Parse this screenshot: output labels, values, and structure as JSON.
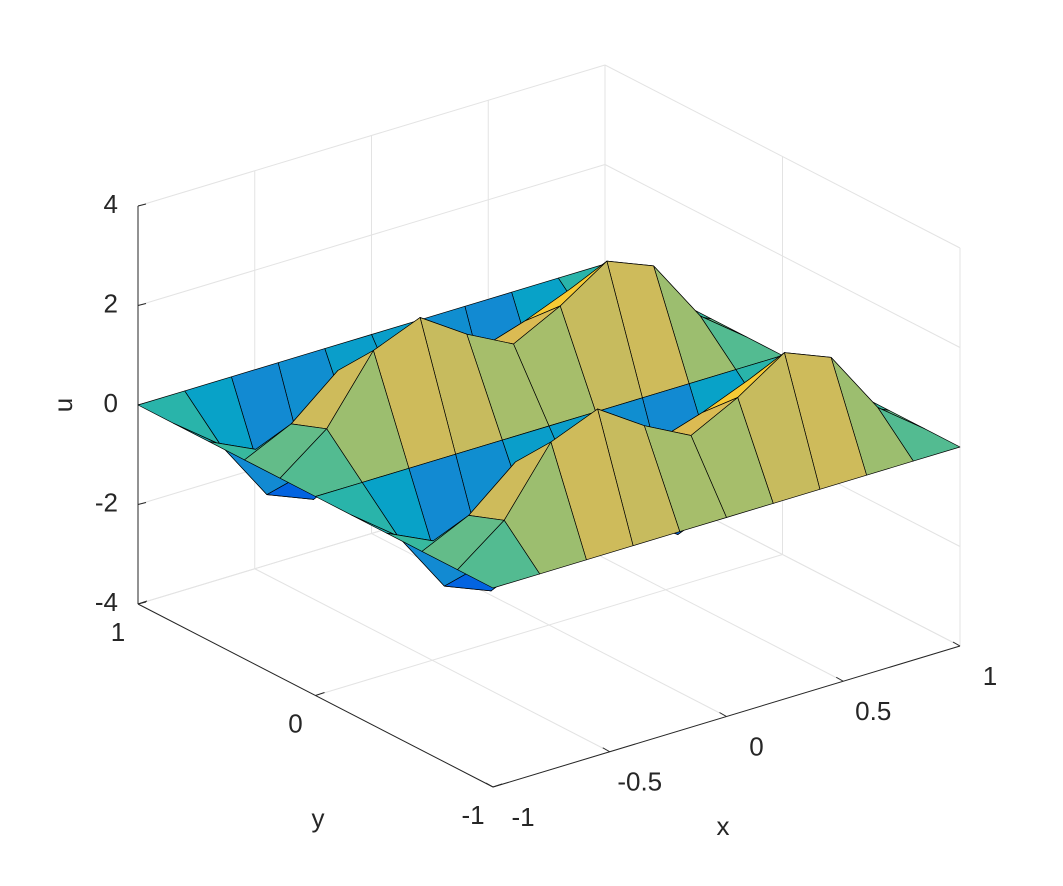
{
  "chart_data": {
    "type": "surface",
    "x": [
      -1,
      -0.8,
      -0.6,
      -0.4,
      -0.2,
      0,
      0.2,
      0.4,
      0.6,
      0.8,
      1
    ],
    "y": [
      -1,
      -0.8,
      -0.6,
      -0.4,
      -0.2,
      0,
      0.2,
      0.4,
      0.6,
      0.8,
      1
    ],
    "z": [
      [
        0,
        0,
        0,
        0,
        0,
        0,
        0,
        0,
        0,
        0,
        0
      ],
      [
        0,
        0.71,
        2.0,
        2.38,
        1.76,
        1.28,
        1.76,
        2.38,
        2.0,
        0.71,
        0
      ],
      [
        0,
        0.44,
        1.23,
        1.47,
        1.09,
        0.79,
        1.09,
        1.47,
        1.23,
        0.44,
        0
      ],
      [
        0,
        -0.44,
        -1.23,
        -1.47,
        -1.09,
        -0.79,
        -1.09,
        -1.47,
        -1.23,
        -0.44,
        0
      ],
      [
        0,
        -0.71,
        -2.0,
        -2.38,
        -1.76,
        -1.28,
        -1.76,
        -2.38,
        -2.0,
        -0.71,
        0
      ],
      [
        0,
        0,
        0,
        0,
        0,
        0,
        0,
        0,
        0,
        0,
        0
      ],
      [
        0,
        0.71,
        2.0,
        2.38,
        1.76,
        1.28,
        1.76,
        2.38,
        2.0,
        0.71,
        0
      ],
      [
        0,
        0.44,
        1.23,
        1.47,
        1.09,
        0.79,
        1.09,
        1.47,
        1.23,
        0.44,
        0
      ],
      [
        0,
        -0.44,
        -1.23,
        -1.47,
        -1.09,
        -0.79,
        -1.09,
        -1.47,
        -1.23,
        -0.44,
        0
      ],
      [
        0,
        -0.71,
        -2.0,
        -2.38,
        -1.76,
        -1.28,
        -1.76,
        -2.38,
        -2.0,
        -0.71,
        0
      ],
      [
        0,
        0,
        0,
        0,
        0,
        0,
        0,
        0,
        0,
        0,
        0
      ]
    ],
    "xlim": [
      -1,
      1
    ],
    "ylim": [
      -1,
      1
    ],
    "zlim": [
      -4,
      4
    ],
    "xticks": [
      -1,
      -0.5,
      0,
      0.5,
      1
    ],
    "yticks": [
      -1,
      0,
      1
    ],
    "zticks": [
      -4,
      -2,
      0,
      2,
      4
    ],
    "xlabel": "x",
    "ylabel": "y",
    "zlabel": "u",
    "grid": true,
    "colormap": "parula",
    "edgecolor": "#000000"
  }
}
